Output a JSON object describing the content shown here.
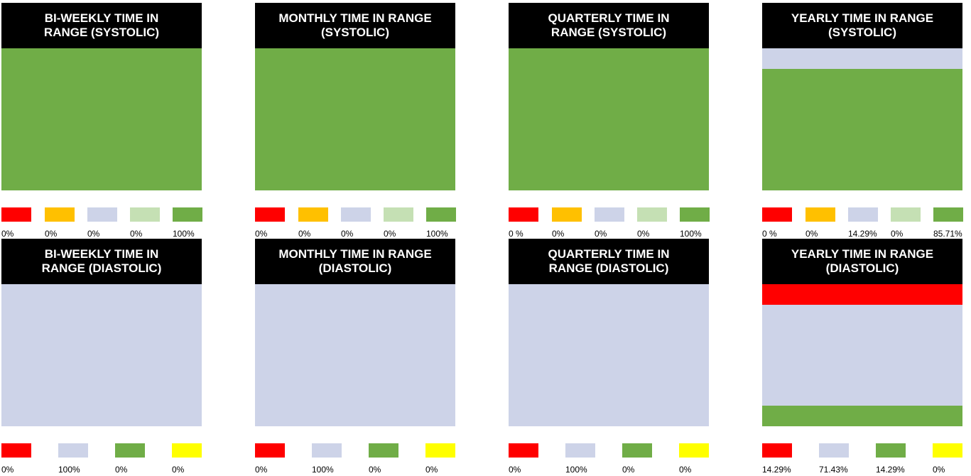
{
  "colors": {
    "red": "#ff0000",
    "orange": "#ffc000",
    "lavender": "#cdd3e8",
    "light_green": "#c5e0b4",
    "green": "#70ad47",
    "yellow": "#ffff00"
  },
  "chart_data": [
    {
      "type": "bar",
      "stacked": true,
      "title": "BI-WEEKLY TIME IN RANGE (SYSTOLIC)",
      "series": [
        {
          "color": "red",
          "value": 0,
          "label": "0%"
        },
        {
          "color": "orange",
          "value": 0,
          "label": "0%"
        },
        {
          "color": "lavender",
          "value": 0,
          "label": "0%"
        },
        {
          "color": "light_green",
          "value": 0,
          "label": "0%"
        },
        {
          "color": "green",
          "value": 100,
          "label": "100%"
        }
      ]
    },
    {
      "type": "bar",
      "stacked": true,
      "title": "MONTHLY TIME IN RANGE (SYSTOLIC)",
      "series": [
        {
          "color": "red",
          "value": 0,
          "label": "0%"
        },
        {
          "color": "orange",
          "value": 0,
          "label": "0%"
        },
        {
          "color": "lavender",
          "value": 0,
          "label": "0%"
        },
        {
          "color": "light_green",
          "value": 0,
          "label": "0%"
        },
        {
          "color": "green",
          "value": 100,
          "label": "100%"
        }
      ]
    },
    {
      "type": "bar",
      "stacked": true,
      "title": "QUARTERLY TIME IN RANGE (SYSTOLIC)",
      "series": [
        {
          "color": "red",
          "value": 0,
          "label": "0 %"
        },
        {
          "color": "orange",
          "value": 0,
          "label": "0%"
        },
        {
          "color": "lavender",
          "value": 0,
          "label": "0%"
        },
        {
          "color": "light_green",
          "value": 0,
          "label": "0%"
        },
        {
          "color": "green",
          "value": 100,
          "label": "100%"
        }
      ]
    },
    {
      "type": "bar",
      "stacked": true,
      "title": "YEARLY TIME IN RANGE (SYSTOLIC)",
      "series": [
        {
          "color": "red",
          "value": 0,
          "label": "0 %"
        },
        {
          "color": "orange",
          "value": 0,
          "label": "0%"
        },
        {
          "color": "lavender",
          "value": 14.29,
          "label": "14.29%"
        },
        {
          "color": "light_green",
          "value": 0,
          "label": "0%"
        },
        {
          "color": "green",
          "value": 85.71,
          "label": "85.71%"
        }
      ]
    },
    {
      "type": "bar",
      "stacked": true,
      "title": "BI-WEEKLY TIME IN RANGE (DIASTOLIC)",
      "series": [
        {
          "color": "red",
          "value": 0,
          "label": "0%"
        },
        {
          "color": "lavender",
          "value": 100,
          "label": "100%"
        },
        {
          "color": "green",
          "value": 0,
          "label": "0%"
        },
        {
          "color": "yellow",
          "value": 0,
          "label": "0%"
        }
      ]
    },
    {
      "type": "bar",
      "stacked": true,
      "title": "MONTHLY TIME IN RANGE (DIASTOLIC)",
      "series": [
        {
          "color": "red",
          "value": 0,
          "label": "0%"
        },
        {
          "color": "lavender",
          "value": 100,
          "label": "100%"
        },
        {
          "color": "green",
          "value": 0,
          "label": "0%"
        },
        {
          "color": "yellow",
          "value": 0,
          "label": "0%"
        }
      ]
    },
    {
      "type": "bar",
      "stacked": true,
      "title": "QUARTERLY TIME IN RANGE (DIASTOLIC)",
      "series": [
        {
          "color": "red",
          "value": 0,
          "label": "0%"
        },
        {
          "color": "lavender",
          "value": 100,
          "label": "100%"
        },
        {
          "color": "green",
          "value": 0,
          "label": "0%"
        },
        {
          "color": "yellow",
          "value": 0,
          "label": "0%"
        }
      ]
    },
    {
      "type": "bar",
      "stacked": true,
      "title": "YEARLY TIME IN RANGE (DIASTOLIC)",
      "series": [
        {
          "color": "red",
          "value": 14.29,
          "label": "14.29%"
        },
        {
          "color": "lavender",
          "value": 71.43,
          "label": "71.43%"
        },
        {
          "color": "green",
          "value": 14.29,
          "label": "14.29%"
        },
        {
          "color": "yellow",
          "value": 0,
          "label": "0%"
        }
      ]
    }
  ]
}
